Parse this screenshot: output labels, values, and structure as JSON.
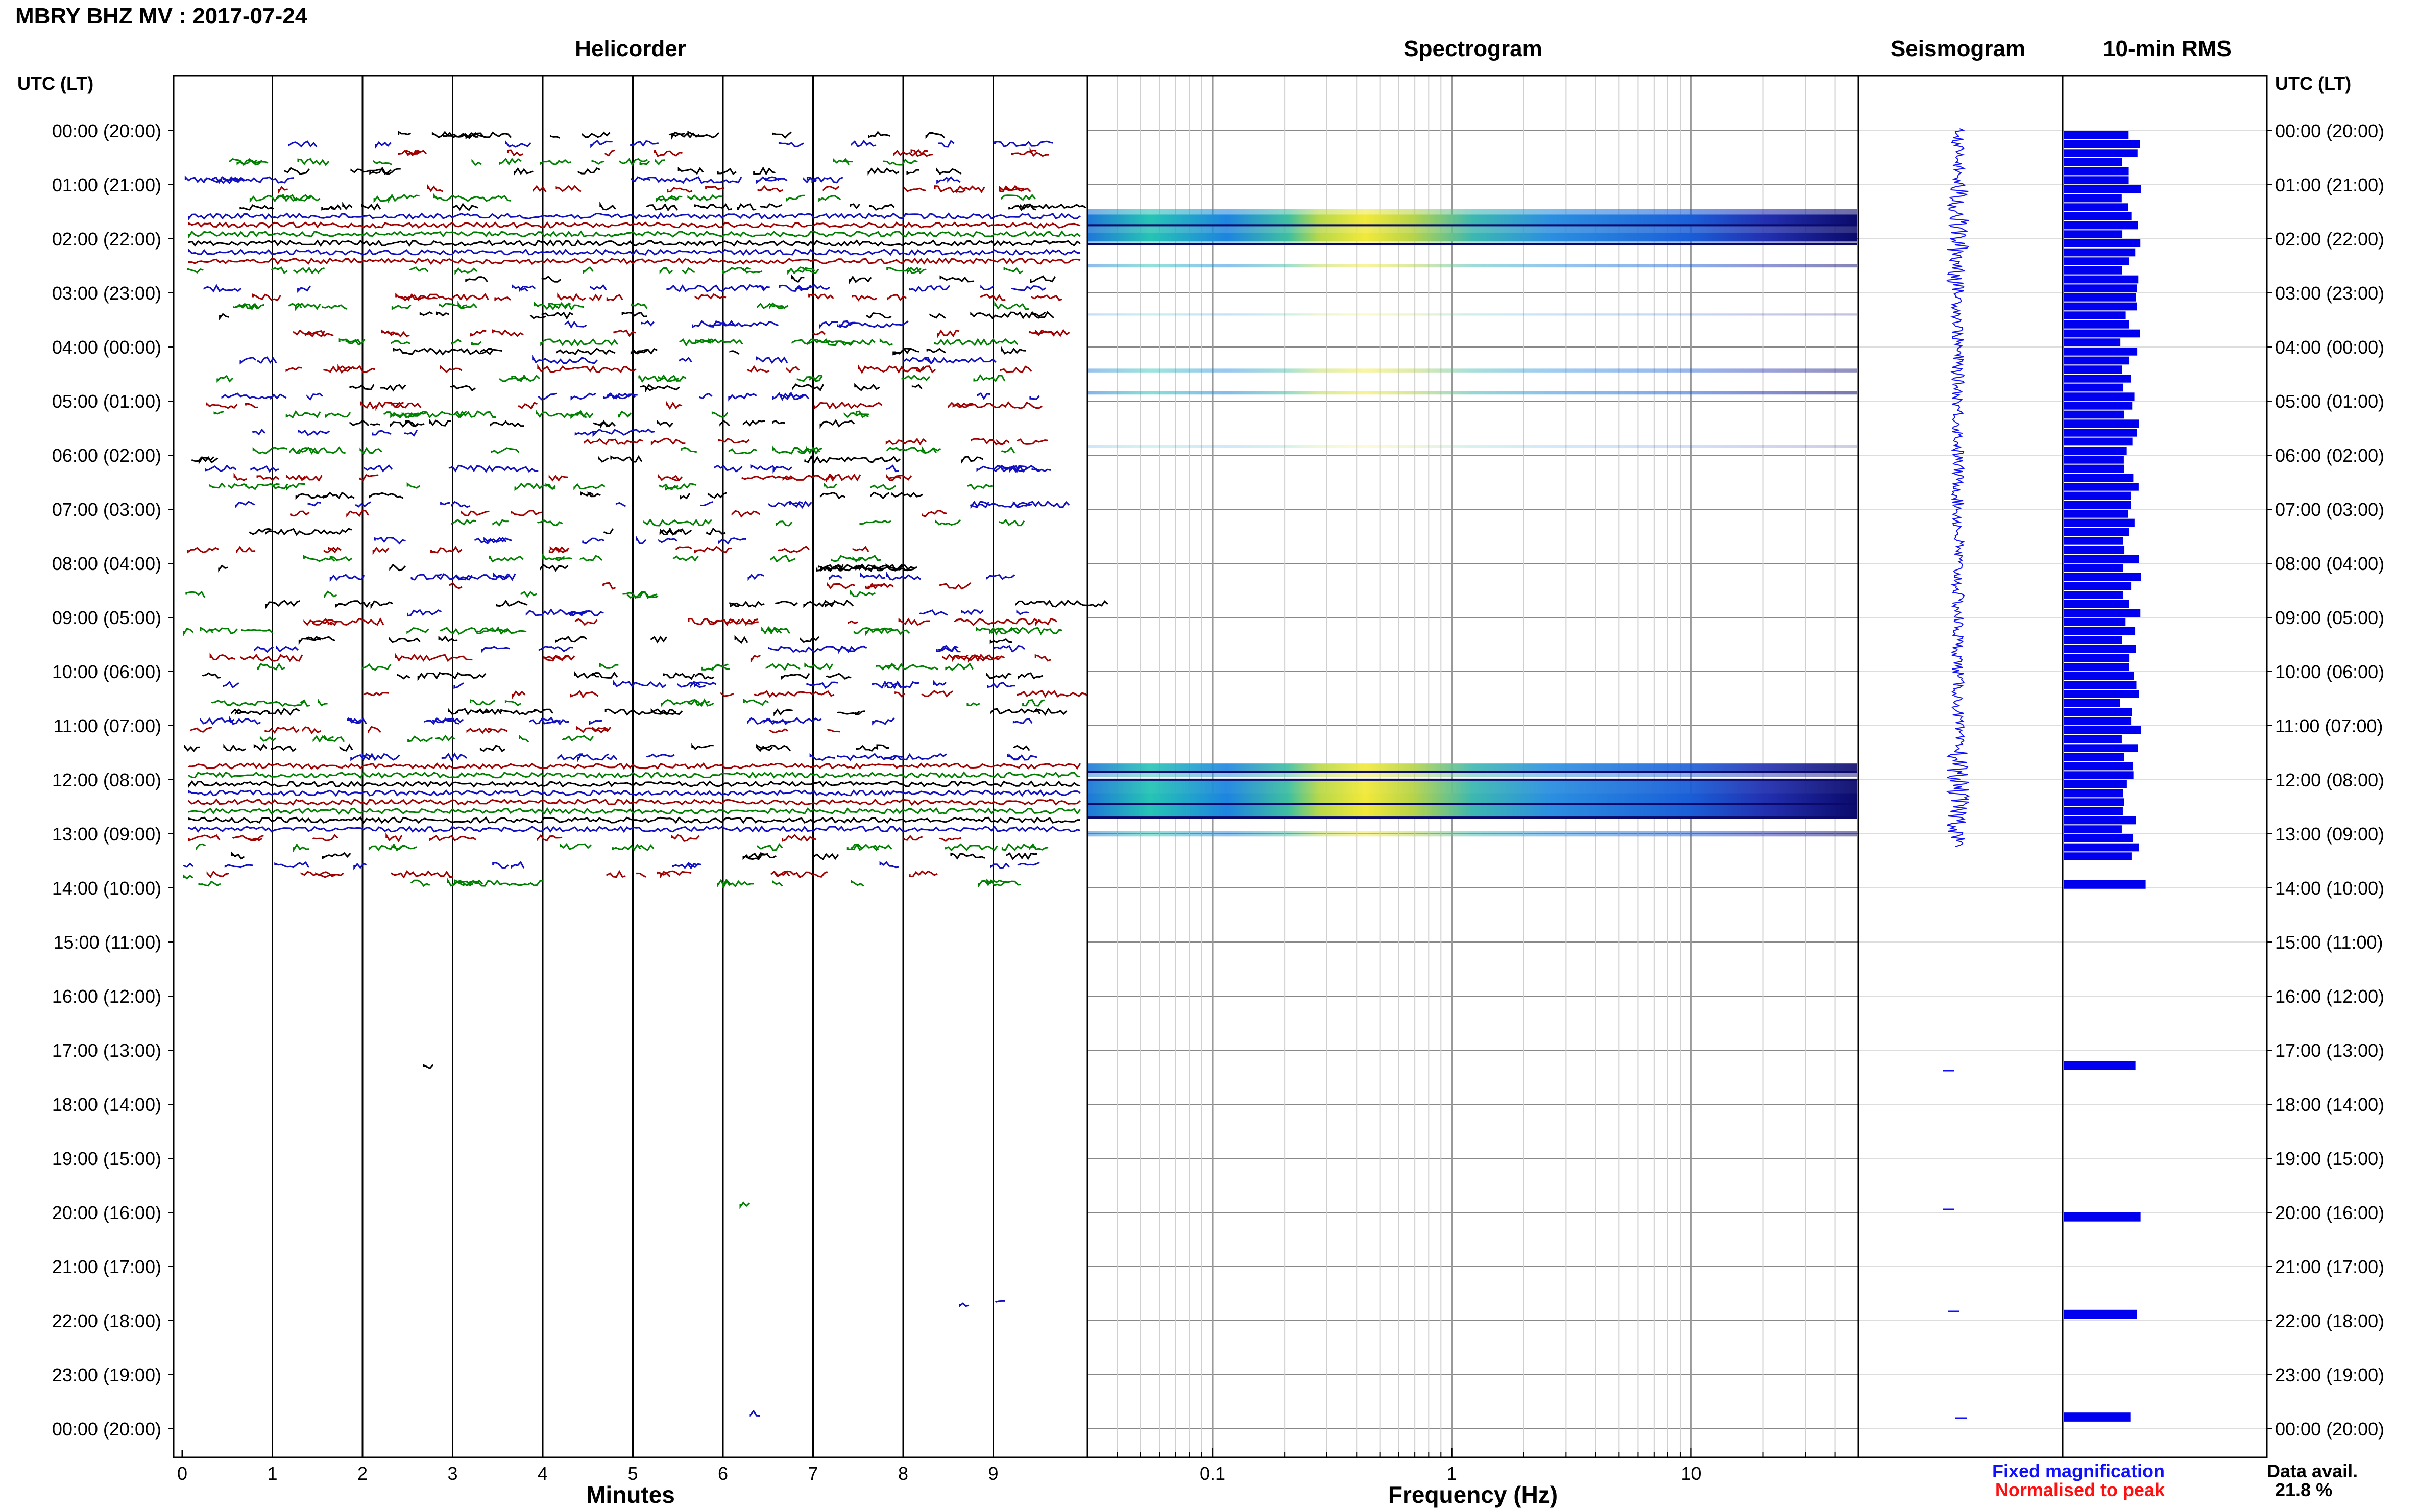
{
  "title": "MBRY BHZ MV : 2017-07-24",
  "panels": {
    "helicorder": "Helicorder",
    "spectrogram": "Spectrogram",
    "seismogram": "Seismogram",
    "rms": "10-min RMS"
  },
  "time_axis_header": "UTC (LT)",
  "time_labels": [
    "00:00 (20:00)",
    "01:00 (21:00)",
    "02:00 (22:00)",
    "03:00 (23:00)",
    "04:00 (00:00)",
    "05:00 (01:00)",
    "06:00 (02:00)",
    "07:00 (03:00)",
    "08:00 (04:00)",
    "09:00 (05:00)",
    "10:00 (06:00)",
    "11:00 (07:00)",
    "12:00 (08:00)",
    "13:00 (09:00)",
    "14:00 (10:00)",
    "15:00 (11:00)",
    "16:00 (12:00)",
    "17:00 (13:00)",
    "18:00 (14:00)",
    "19:00 (15:00)",
    "20:00 (16:00)",
    "21:00 (17:00)",
    "22:00 (18:00)",
    "23:00 (19:00)",
    "00:00 (20:00)"
  ],
  "minute_ticks": [
    "0",
    "1",
    "2",
    "3",
    "4",
    "5",
    "6",
    "7",
    "8",
    "9"
  ],
  "x_label_minutes": "Minutes",
  "freq_ticks": [
    "0.1",
    "1",
    "10"
  ],
  "x_label_freq": "Frequency (Hz)",
  "legend": {
    "fixed": "Fixed magnification",
    "fixed_color": "#1010ff",
    "normalised": "Normalised to peak",
    "normalised_color": "#ff1010"
  },
  "data_avail_label": "Data avail.",
  "data_avail_value": "21.8 %",
  "trace_colors": [
    "#000000",
    "#1010c0",
    "#a00000",
    "#008000"
  ],
  "chart_data": {
    "type": "helicorder",
    "hours": 24,
    "minutes_per_line": 10,
    "helicorder_continuous_hours": [
      1.5,
      2.5,
      12.7,
      13.0
    ],
    "spectrogram": {
      "xscale": "log",
      "xlim": [
        0.03,
        50
      ],
      "active_bands_hours": [
        [
          1.45,
          2.4
        ],
        [
          10.8,
          13.1
        ]
      ],
      "colormap": "parula"
    },
    "rms_10min": {
      "unit": "relative",
      "segments_hours": [
        [
          0.0,
          13.5
        ],
        [
          13.8,
          14.1
        ],
        [
          17.2,
          17.4
        ],
        [
          20.0,
          20.2
        ],
        [
          21.8,
          22.0
        ],
        [
          23.7,
          23.9
        ]
      ],
      "typical_level": 0.42,
      "peak_level": 0.48
    }
  }
}
